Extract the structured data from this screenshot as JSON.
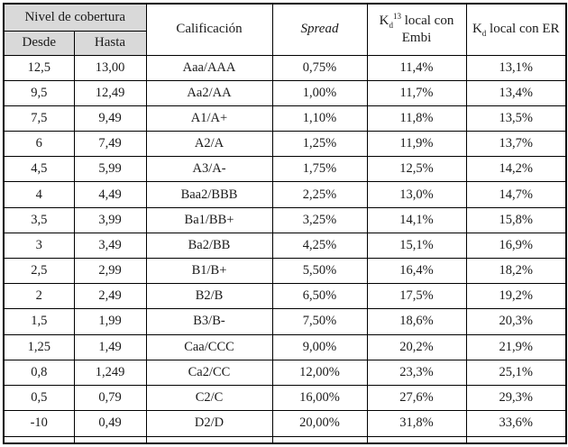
{
  "table": {
    "header": {
      "nivel": "Nivel de cobertura",
      "desde": "Desde",
      "hasta": "Hasta",
      "calificacion": "Calificación",
      "spread": "Spread",
      "kd_embi": {
        "base": "K",
        "sub": "d",
        "sup": "13",
        "rest": " local con Embi"
      },
      "kd_er": {
        "base": "K",
        "sub": "d",
        "rest": " local con ER"
      }
    },
    "rows": [
      [
        "12,5",
        "13,00",
        "Aaa/AAA",
        "0,75%",
        "11,4%",
        "13,1%"
      ],
      [
        "9,5",
        "12,49",
        "Aa2/AA",
        "1,00%",
        "11,7%",
        "13,4%"
      ],
      [
        "7,5",
        "9,49",
        "A1/A+",
        "1,10%",
        "11,8%",
        "13,5%"
      ],
      [
        "6",
        "7,49",
        "A2/A",
        "1,25%",
        "11,9%",
        "13,7%"
      ],
      [
        "4,5",
        "5,99",
        "A3/A-",
        "1,75%",
        "12,5%",
        "14,2%"
      ],
      [
        "4",
        "4,49",
        "Baa2/BBB",
        "2,25%",
        "13,0%",
        "14,7%"
      ],
      [
        "3,5",
        "3,99",
        "Ba1/BB+",
        "3,25%",
        "14,1%",
        "15,8%"
      ],
      [
        "3",
        "3,49",
        "Ba2/BB",
        "4,25%",
        "15,1%",
        "16,9%"
      ],
      [
        "2,5",
        "2,99",
        "B1/B+",
        "5,50%",
        "16,4%",
        "18,2%"
      ],
      [
        "2",
        "2,49",
        "B2/B",
        "6,50%",
        "17,5%",
        "19,2%"
      ],
      [
        "1,5",
        "1,99",
        "B3/B-",
        "7,50%",
        "18,6%",
        "20,3%"
      ],
      [
        "1,25",
        "1,49",
        "Caa/CCC",
        "9,00%",
        "20,2%",
        "21,9%"
      ],
      [
        "0,8",
        "1,249",
        "Ca2/CC",
        "12,00%",
        "23,3%",
        "25,1%"
      ],
      [
        "0,5",
        "0,79",
        "C2/C",
        "16,00%",
        "27,6%",
        "29,3%"
      ],
      [
        "-10",
        "0,49",
        "D2/D",
        "20,00%",
        "31,8%",
        "33,6%"
      ]
    ],
    "colors": {
      "header_bg": "#d9d9d9",
      "border": "#000000"
    }
  }
}
